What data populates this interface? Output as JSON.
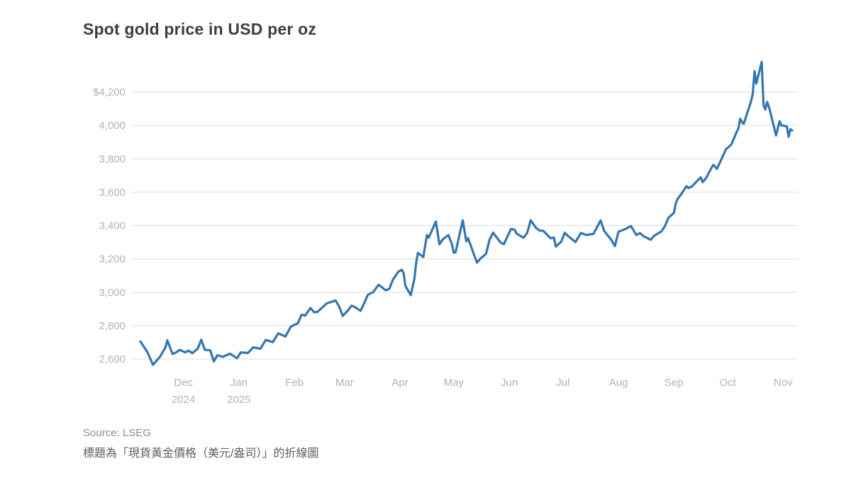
{
  "header": {
    "title": "Spot gold price in USD per oz"
  },
  "footer": {
    "source": "Source: LSEG",
    "caption": "標題為「現貨黃金價格（美元/盎司）」的折線圖"
  },
  "colors": {
    "line": "#3476af",
    "grid": "#e3e3e3",
    "tick_label": "#b3b3b3",
    "title": "#3e3e3e",
    "source": "#8e8e8e",
    "caption": "#5f5f5f",
    "background": "#ffffff"
  },
  "chart_data": {
    "type": "line",
    "title": "Spot gold price in USD per oz",
    "unit": "USD per oz",
    "grid": true,
    "legend_position": "none",
    "y_axis": {
      "min": 2600,
      "max": 4200,
      "step": 200,
      "ticks": [
        {
          "value": 2600,
          "label": "2,600"
        },
        {
          "value": 2800,
          "label": "2,800"
        },
        {
          "value": 3000,
          "label": "3,000"
        },
        {
          "value": 3200,
          "label": "3,200"
        },
        {
          "value": 3400,
          "label": "3,400"
        },
        {
          "value": 3600,
          "label": "3,600"
        },
        {
          "value": 3800,
          "label": "3,800"
        },
        {
          "value": 4000,
          "label": "4,000"
        },
        {
          "value": 4200,
          "label": "$4,200"
        }
      ]
    },
    "x_axis": {
      "ticks": [
        {
          "date": "2024-12-01",
          "label": "Dec",
          "sublabel": "2024"
        },
        {
          "date": "2025-01-01",
          "label": "Jan",
          "sublabel": "2025"
        },
        {
          "date": "2025-02-01",
          "label": "Feb"
        },
        {
          "date": "2025-03-01",
          "label": "Mar"
        },
        {
          "date": "2025-04-01",
          "label": "Apr"
        },
        {
          "date": "2025-05-01",
          "label": "May"
        },
        {
          "date": "2025-06-01",
          "label": "Jun"
        },
        {
          "date": "2025-07-01",
          "label": "Jul"
        },
        {
          "date": "2025-08-01",
          "label": "Aug"
        },
        {
          "date": "2025-09-01",
          "label": "Sep"
        },
        {
          "date": "2025-10-01",
          "label": "Oct"
        },
        {
          "date": "2025-11-01",
          "label": "Nov"
        }
      ]
    },
    "series": [
      {
        "name": "Spot gold price (USD/oz)",
        "points": [
          {
            "date": "2024-11-07",
            "value": 2705
          },
          {
            "date": "2024-11-11",
            "value": 2640
          },
          {
            "date": "2024-11-14",
            "value": 2565
          },
          {
            "date": "2024-11-18",
            "value": 2615
          },
          {
            "date": "2024-11-21",
            "value": 2670
          },
          {
            "date": "2024-11-22",
            "value": 2712
          },
          {
            "date": "2024-11-25",
            "value": 2630
          },
          {
            "date": "2024-11-27",
            "value": 2640
          },
          {
            "date": "2024-11-29",
            "value": 2655
          },
          {
            "date": "2024-12-02",
            "value": 2640
          },
          {
            "date": "2024-12-04",
            "value": 2650
          },
          {
            "date": "2024-12-06",
            "value": 2635
          },
          {
            "date": "2024-12-09",
            "value": 2662
          },
          {
            "date": "2024-12-11",
            "value": 2716
          },
          {
            "date": "2024-12-13",
            "value": 2655
          },
          {
            "date": "2024-12-16",
            "value": 2652
          },
          {
            "date": "2024-12-18",
            "value": 2586
          },
          {
            "date": "2024-12-20",
            "value": 2623
          },
          {
            "date": "2024-12-23",
            "value": 2613
          },
          {
            "date": "2024-12-27",
            "value": 2632
          },
          {
            "date": "2024-12-31",
            "value": 2605
          },
          {
            "date": "2025-01-02",
            "value": 2640
          },
          {
            "date": "2025-01-06",
            "value": 2636
          },
          {
            "date": "2025-01-09",
            "value": 2670
          },
          {
            "date": "2025-01-13",
            "value": 2662
          },
          {
            "date": "2025-01-16",
            "value": 2714
          },
          {
            "date": "2025-01-20",
            "value": 2702
          },
          {
            "date": "2025-01-23",
            "value": 2754
          },
          {
            "date": "2025-01-27",
            "value": 2735
          },
          {
            "date": "2025-01-30",
            "value": 2794
          },
          {
            "date": "2025-02-03",
            "value": 2815
          },
          {
            "date": "2025-02-05",
            "value": 2866
          },
          {
            "date": "2025-02-07",
            "value": 2860
          },
          {
            "date": "2025-02-10",
            "value": 2906
          },
          {
            "date": "2025-02-12",
            "value": 2880
          },
          {
            "date": "2025-02-14",
            "value": 2883
          },
          {
            "date": "2025-02-19",
            "value": 2933
          },
          {
            "date": "2025-02-24",
            "value": 2951
          },
          {
            "date": "2025-02-26",
            "value": 2915
          },
          {
            "date": "2025-02-28",
            "value": 2858
          },
          {
            "date": "2025-03-03",
            "value": 2893
          },
          {
            "date": "2025-03-05",
            "value": 2920
          },
          {
            "date": "2025-03-07",
            "value": 2910
          },
          {
            "date": "2025-03-10",
            "value": 2889
          },
          {
            "date": "2025-03-12",
            "value": 2935
          },
          {
            "date": "2025-03-14",
            "value": 2984
          },
          {
            "date": "2025-03-17",
            "value": 3001
          },
          {
            "date": "2025-03-19",
            "value": 3030
          },
          {
            "date": "2025-03-20",
            "value": 3045
          },
          {
            "date": "2025-03-24",
            "value": 3012
          },
          {
            "date": "2025-03-26",
            "value": 3020
          },
          {
            "date": "2025-03-28",
            "value": 3075
          },
          {
            "date": "2025-03-31",
            "value": 3123
          },
          {
            "date": "2025-04-02",
            "value": 3135
          },
          {
            "date": "2025-04-03",
            "value": 3115
          },
          {
            "date": "2025-04-04",
            "value": 3038
          },
          {
            "date": "2025-04-07",
            "value": 2983
          },
          {
            "date": "2025-04-09",
            "value": 3080
          },
          {
            "date": "2025-04-10",
            "value": 3176
          },
          {
            "date": "2025-04-11",
            "value": 3236
          },
          {
            "date": "2025-04-14",
            "value": 3211
          },
          {
            "date": "2025-04-16",
            "value": 3343
          },
          {
            "date": "2025-04-17",
            "value": 3327
          },
          {
            "date": "2025-04-21",
            "value": 3424
          },
          {
            "date": "2025-04-23",
            "value": 3288
          },
          {
            "date": "2025-04-25",
            "value": 3319
          },
          {
            "date": "2025-04-28",
            "value": 3343
          },
          {
            "date": "2025-04-30",
            "value": 3288
          },
          {
            "date": "2025-05-01",
            "value": 3237
          },
          {
            "date": "2025-05-02",
            "value": 3240
          },
          {
            "date": "2025-05-06",
            "value": 3431
          },
          {
            "date": "2025-05-08",
            "value": 3305
          },
          {
            "date": "2025-05-09",
            "value": 3325
          },
          {
            "date": "2025-05-12",
            "value": 3235
          },
          {
            "date": "2025-05-14",
            "value": 3177
          },
          {
            "date": "2025-05-16",
            "value": 3203
          },
          {
            "date": "2025-05-19",
            "value": 3230
          },
          {
            "date": "2025-05-21",
            "value": 3315
          },
          {
            "date": "2025-05-23",
            "value": 3357
          },
          {
            "date": "2025-05-27",
            "value": 3300
          },
          {
            "date": "2025-05-29",
            "value": 3288
          },
          {
            "date": "2025-06-02",
            "value": 3380
          },
          {
            "date": "2025-06-04",
            "value": 3375
          },
          {
            "date": "2025-06-05",
            "value": 3353
          },
          {
            "date": "2025-06-09",
            "value": 3327
          },
          {
            "date": "2025-06-11",
            "value": 3355
          },
          {
            "date": "2025-06-13",
            "value": 3432
          },
          {
            "date": "2025-06-16",
            "value": 3385
          },
          {
            "date": "2025-06-18",
            "value": 3370
          },
          {
            "date": "2025-06-20",
            "value": 3368
          },
          {
            "date": "2025-06-24",
            "value": 3324
          },
          {
            "date": "2025-06-26",
            "value": 3328
          },
          {
            "date": "2025-06-27",
            "value": 3274
          },
          {
            "date": "2025-06-30",
            "value": 3303
          },
          {
            "date": "2025-07-02",
            "value": 3357
          },
          {
            "date": "2025-07-04",
            "value": 3336
          },
          {
            "date": "2025-07-08",
            "value": 3301
          },
          {
            "date": "2025-07-11",
            "value": 3356
          },
          {
            "date": "2025-07-14",
            "value": 3343
          },
          {
            "date": "2025-07-16",
            "value": 3347
          },
          {
            "date": "2025-07-18",
            "value": 3350
          },
          {
            "date": "2025-07-22",
            "value": 3430
          },
          {
            "date": "2025-07-24",
            "value": 3368
          },
          {
            "date": "2025-07-28",
            "value": 3314
          },
          {
            "date": "2025-07-30",
            "value": 3277
          },
          {
            "date": "2025-08-01",
            "value": 3363
          },
          {
            "date": "2025-08-05",
            "value": 3380
          },
          {
            "date": "2025-08-08",
            "value": 3397
          },
          {
            "date": "2025-08-11",
            "value": 3343
          },
          {
            "date": "2025-08-13",
            "value": 3355
          },
          {
            "date": "2025-08-15",
            "value": 3336
          },
          {
            "date": "2025-08-19",
            "value": 3315
          },
          {
            "date": "2025-08-21",
            "value": 3339
          },
          {
            "date": "2025-08-25",
            "value": 3365
          },
          {
            "date": "2025-08-27",
            "value": 3397
          },
          {
            "date": "2025-08-29",
            "value": 3448
          },
          {
            "date": "2025-09-01",
            "value": 3476
          },
          {
            "date": "2025-09-02",
            "value": 3533
          },
          {
            "date": "2025-09-03",
            "value": 3559
          },
          {
            "date": "2025-09-05",
            "value": 3587
          },
          {
            "date": "2025-09-08",
            "value": 3636
          },
          {
            "date": "2025-09-09",
            "value": 3625
          },
          {
            "date": "2025-09-11",
            "value": 3634
          },
          {
            "date": "2025-09-15",
            "value": 3679
          },
          {
            "date": "2025-09-16",
            "value": 3689
          },
          {
            "date": "2025-09-17",
            "value": 3660
          },
          {
            "date": "2025-09-19",
            "value": 3685
          },
          {
            "date": "2025-09-22",
            "value": 3747
          },
          {
            "date": "2025-09-23",
            "value": 3764
          },
          {
            "date": "2025-09-25",
            "value": 3740
          },
          {
            "date": "2025-09-29",
            "value": 3833
          },
          {
            "date": "2025-09-30",
            "value": 3858
          },
          {
            "date": "2025-10-01",
            "value": 3865
          },
          {
            "date": "2025-10-03",
            "value": 3886
          },
          {
            "date": "2025-10-06",
            "value": 3960
          },
          {
            "date": "2025-10-07",
            "value": 3983
          },
          {
            "date": "2025-10-08",
            "value": 4040
          },
          {
            "date": "2025-10-09",
            "value": 4020
          },
          {
            "date": "2025-10-10",
            "value": 4010
          },
          {
            "date": "2025-10-13",
            "value": 4110
          },
          {
            "date": "2025-10-14",
            "value": 4142
          },
          {
            "date": "2025-10-15",
            "value": 4190
          },
          {
            "date": "2025-10-16",
            "value": 4325
          },
          {
            "date": "2025-10-17",
            "value": 4251
          },
          {
            "date": "2025-10-20",
            "value": 4381
          },
          {
            "date": "2025-10-21",
            "value": 4125
          },
          {
            "date": "2025-10-22",
            "value": 4095
          },
          {
            "date": "2025-10-23",
            "value": 4140
          },
          {
            "date": "2025-10-24",
            "value": 4113
          },
          {
            "date": "2025-10-27",
            "value": 3985
          },
          {
            "date": "2025-10-28",
            "value": 3940
          },
          {
            "date": "2025-10-30",
            "value": 4025
          },
          {
            "date": "2025-10-31",
            "value": 4000
          },
          {
            "date": "2025-11-03",
            "value": 3995
          },
          {
            "date": "2025-11-04",
            "value": 3932
          },
          {
            "date": "2025-11-05",
            "value": 3977
          },
          {
            "date": "2025-11-06",
            "value": 3970
          }
        ]
      }
    ]
  }
}
